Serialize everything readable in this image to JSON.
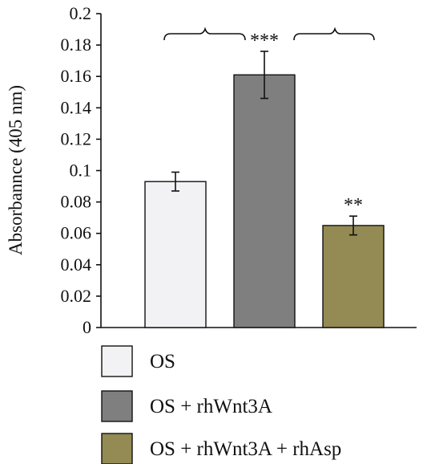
{
  "chart_data": {
    "type": "bar",
    "ylabel": "Absorbannce (405 nm)",
    "ylim": [
      0,
      0.2
    ],
    "yticks": [
      "0",
      "0.02",
      "0.04",
      "0.06",
      "0.08",
      "0.1",
      "0.12",
      "0.14",
      "0.16",
      "0.18",
      "0.2"
    ],
    "categories": [
      "OS",
      "OS + rhWnt3A",
      "OS + rhWnt3A + rhAsp"
    ],
    "values": [
      0.093,
      0.161,
      0.065
    ],
    "errors": [
      0.006,
      0.015,
      0.006
    ],
    "colors": [
      "#f2f2f4",
      "#7f7f7f",
      "#948a54"
    ],
    "annotations": [
      "",
      "***",
      "**"
    ],
    "legend": {
      "position": "bottom",
      "entries": [
        "OS",
        "OS + rhWnt3A",
        "OS + rhWnt3A + rhAsp"
      ]
    },
    "grid": false
  }
}
